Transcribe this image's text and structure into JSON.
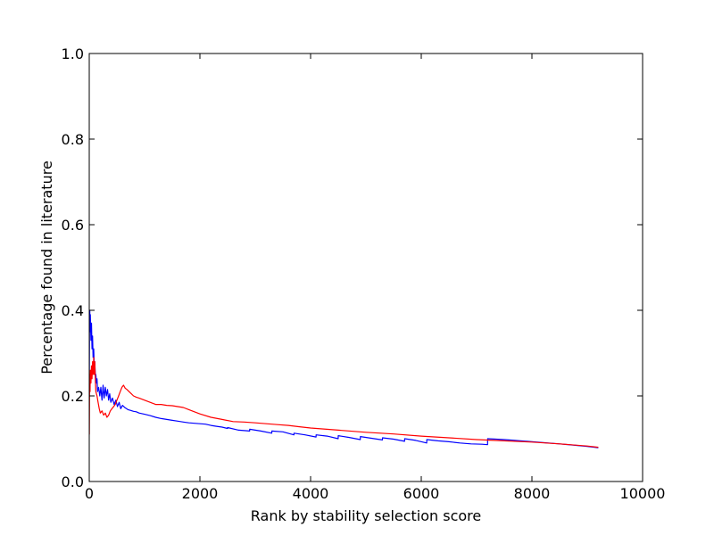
{
  "chart_data": {
    "type": "line",
    "title": "",
    "xlabel": "Rank by stability selection score",
    "ylabel": "Percentage found in literature",
    "xlim": [
      0,
      10000
    ],
    "ylim": [
      0.0,
      1.0
    ],
    "x_ticks": [
      "0",
      "2000",
      "4000",
      "6000",
      "8000",
      "10000"
    ],
    "y_ticks": [
      "0.0",
      "0.2",
      "0.4",
      "0.6",
      "0.8",
      "1.0"
    ],
    "grid": false,
    "legend": null,
    "series": [
      {
        "color": "#0000ff",
        "x": [
          1,
          5,
          10,
          15,
          20,
          30,
          40,
          50,
          60,
          70,
          80,
          90,
          100,
          110,
          120,
          130,
          140,
          150,
          170,
          190,
          210,
          230,
          250,
          270,
          290,
          310,
          330,
          350,
          370,
          390,
          420,
          450,
          480,
          510,
          540,
          570,
          600,
          650,
          700,
          750,
          800,
          850,
          900,
          1000,
          1100,
          1200,
          1300,
          1400,
          1500,
          1600,
          1700,
          1800,
          1900,
          2000,
          2100,
          2200,
          2300,
          2400,
          2499,
          2500,
          2700,
          2899,
          2900,
          3100,
          3299,
          3300,
          3500,
          3699,
          3700,
          3900,
          4099,
          4100,
          4300,
          4499,
          4500,
          4700,
          4899,
          4900,
          5100,
          5299,
          5300,
          5500,
          5699,
          5700,
          5900,
          6099,
          6100,
          6300,
          6500,
          6700,
          6900,
          7100,
          7199,
          7200,
          7500,
          8000,
          8500,
          9000,
          9200
        ],
        "values": [
          0.26,
          0.37,
          0.4,
          0.35,
          0.39,
          0.33,
          0.37,
          0.31,
          0.34,
          0.29,
          0.31,
          0.27,
          0.28,
          0.25,
          0.25,
          0.23,
          0.24,
          0.21,
          0.22,
          0.2,
          0.22,
          0.19,
          0.225,
          0.195,
          0.22,
          0.2,
          0.215,
          0.19,
          0.205,
          0.185,
          0.195,
          0.18,
          0.19,
          0.175,
          0.185,
          0.17,
          0.178,
          0.172,
          0.168,
          0.166,
          0.164,
          0.163,
          0.16,
          0.157,
          0.154,
          0.15,
          0.147,
          0.145,
          0.143,
          0.141,
          0.139,
          0.137,
          0.136,
          0.135,
          0.134,
          0.131,
          0.129,
          0.127,
          0.124,
          0.126,
          0.12,
          0.118,
          0.122,
          0.118,
          0.113,
          0.118,
          0.116,
          0.109,
          0.113,
          0.109,
          0.104,
          0.109,
          0.106,
          0.1,
          0.107,
          0.103,
          0.098,
          0.105,
          0.101,
          0.097,
          0.102,
          0.099,
          0.094,
          0.1,
          0.096,
          0.09,
          0.098,
          0.095,
          0.093,
          0.09,
          0.088,
          0.087,
          0.086,
          0.1,
          0.098,
          0.093,
          0.088,
          0.082,
          0.079
        ]
      },
      {
        "color": "#ff0000",
        "x": [
          1,
          5,
          10,
          15,
          20,
          30,
          40,
          50,
          60,
          70,
          80,
          90,
          100,
          110,
          120,
          140,
          160,
          180,
          200,
          230,
          260,
          290,
          320,
          350,
          380,
          410,
          440,
          470,
          500,
          530,
          560,
          590,
          620,
          650,
          680,
          720,
          760,
          800,
          850,
          900,
          1000,
          1100,
          1200,
          1300,
          1400,
          1500,
          1600,
          1700,
          1800,
          1900,
          2000,
          2200,
          2400,
          2600,
          2800,
          3000,
          3200,
          3400,
          3600,
          3800,
          4000,
          4500,
          5000,
          5500,
          6000,
          6500,
          7000,
          7500,
          8000,
          8500,
          9000,
          9200
        ],
        "values": [
          0.11,
          0.2,
          0.25,
          0.21,
          0.26,
          0.23,
          0.27,
          0.24,
          0.28,
          0.25,
          0.29,
          0.25,
          0.28,
          0.24,
          0.21,
          0.2,
          0.185,
          0.17,
          0.16,
          0.165,
          0.155,
          0.16,
          0.15,
          0.155,
          0.165,
          0.17,
          0.175,
          0.18,
          0.19,
          0.2,
          0.21,
          0.22,
          0.225,
          0.218,
          0.215,
          0.21,
          0.205,
          0.2,
          0.197,
          0.195,
          0.19,
          0.185,
          0.18,
          0.18,
          0.178,
          0.177,
          0.175,
          0.173,
          0.168,
          0.163,
          0.158,
          0.15,
          0.145,
          0.14,
          0.139,
          0.137,
          0.135,
          0.133,
          0.131,
          0.128,
          0.125,
          0.12,
          0.115,
          0.111,
          0.106,
          0.102,
          0.098,
          0.095,
          0.092,
          0.088,
          0.083,
          0.08
        ]
      }
    ]
  }
}
